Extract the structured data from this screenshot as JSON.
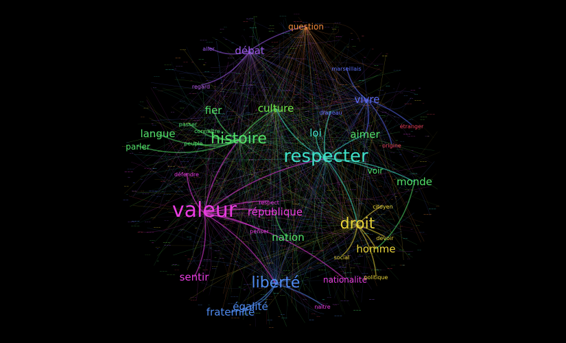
{
  "graph": {
    "background": "#000000",
    "hubs": [
      {
        "id": "valeur",
        "label": "valeur",
        "color": "#e83de0"
      },
      {
        "id": "respecter",
        "label": "respecter",
        "color": "#3fe0c8"
      },
      {
        "id": "histoire",
        "label": "histoire",
        "color": "#52e06a"
      },
      {
        "id": "droit",
        "label": "droit",
        "color": "#e8d43a"
      },
      {
        "id": "liberte",
        "label": "liberté",
        "color": "#4f8bf0"
      },
      {
        "id": "debat",
        "label": "débat",
        "color": "#9a5ae8"
      },
      {
        "id": "vivre",
        "label": "vivre",
        "color": "#5a6af0"
      },
      {
        "id": "culture",
        "label": "culture",
        "color": "#6ee84a"
      },
      {
        "id": "question",
        "label": "question",
        "color": "#f08a3a"
      }
    ],
    "words": [
      {
        "label": "question",
        "color": "#f08a3a",
        "weight": 2
      },
      {
        "label": "débat",
        "color": "#9a5ae8",
        "weight": 3
      },
      {
        "label": "aller",
        "color": "#9a5ae8",
        "weight": 1
      },
      {
        "label": "marseillais",
        "color": "#5a6af0",
        "weight": 1
      },
      {
        "label": "regard",
        "color": "#b45ae8",
        "weight": 1
      },
      {
        "label": "vivre",
        "color": "#5a6af0",
        "weight": 3
      },
      {
        "label": "drapeau",
        "color": "#5a6af0",
        "weight": 1
      },
      {
        "label": "culture",
        "color": "#6ee84a",
        "weight": 3
      },
      {
        "label": "fier",
        "color": "#52e06a",
        "weight": 3
      },
      {
        "label": "étranger",
        "color": "#e8405a",
        "weight": 1
      },
      {
        "label": "langue",
        "color": "#52e06a",
        "weight": 3
      },
      {
        "label": "passer",
        "color": "#52e06a",
        "weight": 1
      },
      {
        "label": "connaître",
        "color": "#52e06a",
        "weight": 1
      },
      {
        "label": "histoire",
        "color": "#52e06a",
        "weight": 5
      },
      {
        "label": "loi",
        "color": "#3fe0c8",
        "weight": 3
      },
      {
        "label": "aimer",
        "color": "#52e06a",
        "weight": 3
      },
      {
        "label": "origine",
        "color": "#e8405a",
        "weight": 1
      },
      {
        "label": "parler",
        "color": "#52e06a",
        "weight": 2
      },
      {
        "label": "peuple",
        "color": "#52e06a",
        "weight": 1
      },
      {
        "label": "respecter",
        "color": "#3fe0c8",
        "weight": 6
      },
      {
        "label": "voir",
        "color": "#52e06a",
        "weight": 2
      },
      {
        "label": "monde",
        "color": "#52e06a",
        "weight": 3
      },
      {
        "label": "défendre",
        "color": "#e83de0",
        "weight": 1
      },
      {
        "label": "respect",
        "color": "#e83de0",
        "weight": 1
      },
      {
        "label": "citoyen",
        "color": "#e8d43a",
        "weight": 1
      },
      {
        "label": "valeur",
        "color": "#e83de0",
        "weight": 7
      },
      {
        "label": "république",
        "color": "#e83de0",
        "weight": 3
      },
      {
        "label": "droit",
        "color": "#e8d43a",
        "weight": 5
      },
      {
        "label": "penser",
        "color": "#e83de0",
        "weight": 1
      },
      {
        "label": "devoir",
        "color": "#e8d43a",
        "weight": 1
      },
      {
        "label": "nation",
        "color": "#52e06a",
        "weight": 3
      },
      {
        "label": "homme",
        "color": "#e8d43a",
        "weight": 3
      },
      {
        "label": "social",
        "color": "#e8d43a",
        "weight": 1
      },
      {
        "label": "sentir",
        "color": "#e83de0",
        "weight": 3
      },
      {
        "label": "liberté",
        "color": "#4f8bf0",
        "weight": 5
      },
      {
        "label": "nationalité",
        "color": "#e83de0",
        "weight": 2
      },
      {
        "label": "politique",
        "color": "#e8d43a",
        "weight": 1
      },
      {
        "label": "égalité",
        "color": "#4f8bf0",
        "weight": 3
      },
      {
        "label": "fraternité",
        "color": "#4f8bf0",
        "weight": 3
      },
      {
        "label": "naître",
        "color": "#e83de0",
        "weight": 1
      }
    ],
    "edges": [
      [
        "valeur",
        "respecter"
      ],
      [
        "valeur",
        "histoire"
      ],
      [
        "valeur",
        "liberté"
      ],
      [
        "valeur",
        "république"
      ],
      [
        "valeur",
        "sentir"
      ],
      [
        "valeur",
        "défendre"
      ],
      [
        "valeur",
        "penser"
      ],
      [
        "valeur",
        "respect"
      ],
      [
        "valeur",
        "nationalité"
      ],
      [
        "respecter",
        "loi"
      ],
      [
        "respecter",
        "aimer"
      ],
      [
        "respecter",
        "voir"
      ],
      [
        "respecter",
        "droit"
      ],
      [
        "respecter",
        "monde"
      ],
      [
        "respecter",
        "culture"
      ],
      [
        "respecter",
        "drapeau"
      ],
      [
        "histoire",
        "langue"
      ],
      [
        "histoire",
        "fier"
      ],
      [
        "histoire",
        "culture"
      ],
      [
        "histoire",
        "parler"
      ],
      [
        "histoire",
        "peuple"
      ],
      [
        "histoire",
        "passer"
      ],
      [
        "histoire",
        "connaître"
      ],
      [
        "droit",
        "homme"
      ],
      [
        "droit",
        "citoyen"
      ],
      [
        "droit",
        "devoir"
      ],
      [
        "droit",
        "social"
      ],
      [
        "droit",
        "politique"
      ],
      [
        "liberté",
        "égalité"
      ],
      [
        "liberté",
        "fraternité"
      ],
      [
        "liberté",
        "naître"
      ],
      [
        "débat",
        "question"
      ],
      [
        "débat",
        "aller"
      ],
      [
        "débat",
        "regard"
      ],
      [
        "vivre",
        "marseillais"
      ],
      [
        "vivre",
        "étranger"
      ],
      [
        "vivre",
        "origine"
      ],
      [
        "vivre",
        "aimer"
      ],
      [
        "nation",
        "république"
      ],
      [
        "monde",
        "homme"
      ]
    ]
  }
}
